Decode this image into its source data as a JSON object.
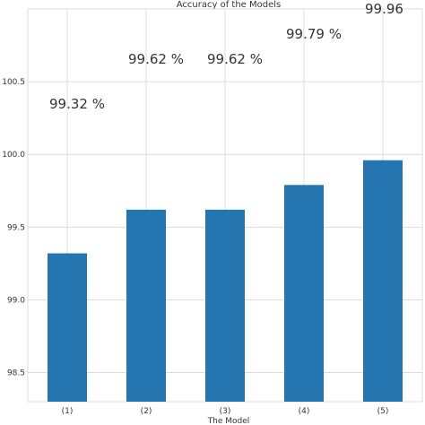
{
  "chart_data": {
    "type": "bar",
    "title": "Accuracy of the Models",
    "xlabel": "The Model",
    "ylabel": "",
    "categories": [
      "(1)",
      "(2)",
      "(3)",
      "(4)",
      "(5)"
    ],
    "values": [
      99.32,
      99.62,
      99.62,
      99.79,
      99.96
    ],
    "data_labels": [
      "99.32 %",
      "99.62 %",
      "99.62 %",
      "99.79 %",
      "99.96"
    ],
    "ylim": [
      98.3,
      101.0
    ],
    "yticks": [
      98.5,
      99.0,
      99.5,
      100.0,
      100.5
    ],
    "ytick_labels": [
      "98.5",
      "99.0",
      "99.5",
      "100.0",
      "100.5"
    ],
    "grid": true,
    "bar_color": "#2475b0",
    "grid_color": "#dcdcdc"
  }
}
